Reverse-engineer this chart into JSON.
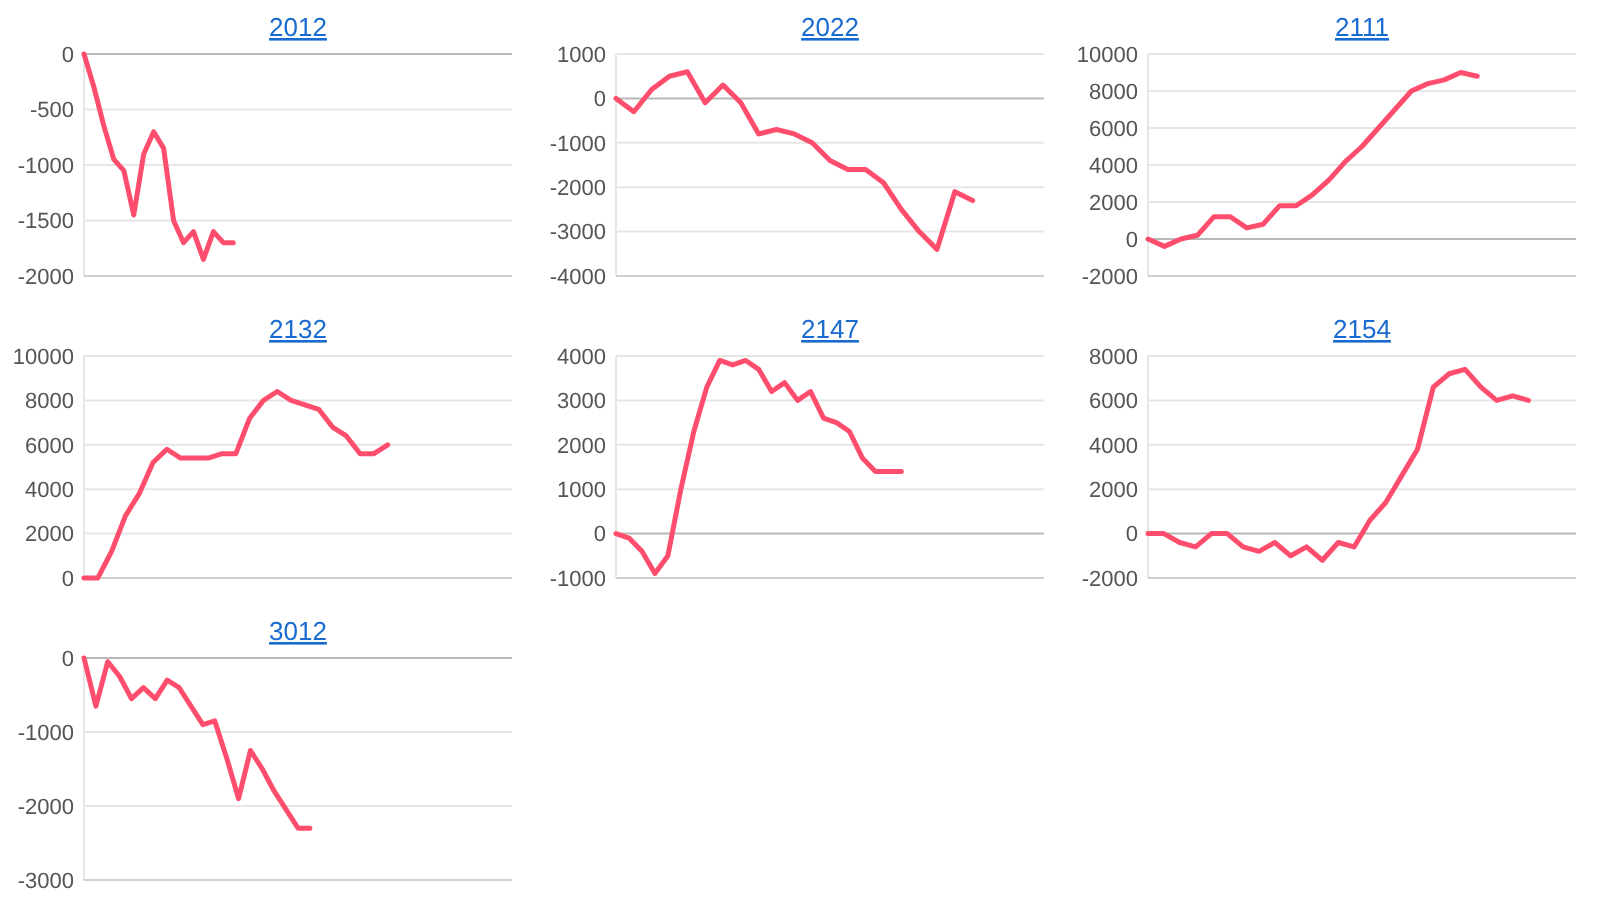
{
  "chart_data": [
    {
      "type": "line",
      "title": "2012",
      "categories": [
        null,
        null,
        null,
        null,
        null,
        null,
        null,
        null,
        null,
        null,
        null,
        null,
        null,
        null,
        null,
        null,
        null,
        null,
        null,
        null,
        null,
        null,
        null,
        null,
        null,
        null,
        null,
        null,
        null,
        null,
        null,
        null,
        null,
        null,
        null,
        null,
        null,
        null,
        null,
        null,
        null,
        null,
        null,
        null
      ],
      "series": [
        {
          "color": "#ff4d6d",
          "values": [
            0,
            -300,
            -650,
            -950,
            -1050,
            -1450,
            -900,
            -700,
            -850,
            -1500,
            -1700,
            -1600,
            -1850,
            -1600,
            -1700,
            -1700,
            null,
            null,
            null,
            null,
            null,
            null,
            null,
            null,
            null,
            null,
            null,
            null,
            null,
            null,
            null,
            null,
            null,
            null,
            null,
            null,
            null,
            null,
            null,
            null,
            null,
            null,
            null,
            null
          ]
        }
      ],
      "ylim": [
        -2000,
        0
      ],
      "yticks": [
        -2000,
        -1500,
        -1000,
        -500,
        0
      ],
      "grid": "y",
      "tick_labels": "y"
    },
    {
      "type": "line",
      "title": "2022",
      "categories": [
        null,
        null,
        null,
        null,
        null,
        null,
        null,
        null,
        null,
        null,
        null,
        null,
        null,
        null,
        null,
        null,
        null,
        null,
        null,
        null,
        null,
        null,
        null,
        null,
        null
      ],
      "series": [
        {
          "color": "#ff4d6d",
          "values": [
            0,
            -300,
            200,
            500,
            600,
            -100,
            300,
            -100,
            -800,
            -700,
            -800,
            -1000,
            -1400,
            -1600,
            -1600,
            -1900,
            -2500,
            -3000,
            -3400,
            -2100,
            -2300,
            null,
            null,
            null,
            null
          ]
        }
      ],
      "ylim": [
        -4000,
        1000
      ],
      "yticks": [
        -4000,
        -3000,
        -2000,
        -1000,
        0,
        1000
      ],
      "grid": "y",
      "tick_labels": "y"
    },
    {
      "type": "line",
      "title": "2111",
      "categories": [
        null,
        null,
        null,
        null,
        null,
        null,
        null,
        null,
        null,
        null,
        null,
        null,
        null,
        null,
        null,
        null,
        null,
        null,
        null,
        null,
        null,
        null,
        null,
        null,
        null,
        null,
        null
      ],
      "series": [
        {
          "color": "#ff4d6d",
          "values": [
            0,
            -400,
            0,
            200,
            1200,
            1200,
            600,
            800,
            1800,
            1800,
            2400,
            3200,
            4200,
            5000,
            6000,
            7000,
            8000,
            8400,
            8600,
            9000,
            8800,
            null,
            null,
            null,
            null,
            null,
            null
          ]
        }
      ],
      "ylim": [
        -2000,
        10000
      ],
      "yticks": [
        -2000,
        0,
        2000,
        4000,
        6000,
        8000,
        10000
      ],
      "grid": "y",
      "tick_labels": "y"
    },
    {
      "type": "line",
      "title": "2132",
      "categories": [
        null,
        null,
        null,
        null,
        null,
        null,
        null,
        null,
        null,
        null,
        null,
        null,
        null,
        null,
        null,
        null,
        null,
        null,
        null,
        null,
        null,
        null,
        null,
        null,
        null,
        null,
        null,
        null,
        null,
        null,
        null,
        null
      ],
      "series": [
        {
          "color": "#ff4d6d",
          "values": [
            0,
            0,
            1200,
            2800,
            3800,
            5200,
            5800,
            5400,
            5400,
            5400,
            5600,
            5600,
            7200,
            8000,
            8400,
            8000,
            7800,
            7600,
            6800,
            6400,
            5600,
            5600,
            6000,
            null,
            null,
            null,
            null,
            null,
            null,
            null,
            null,
            null
          ]
        }
      ],
      "ylim": [
        0,
        10000
      ],
      "yticks": [
        0,
        2000,
        4000,
        6000,
        8000,
        10000
      ],
      "grid": "y",
      "tick_labels": "y"
    },
    {
      "type": "line",
      "title": "2147",
      "categories": [
        null,
        null,
        null,
        null,
        null,
        null,
        null,
        null,
        null,
        null,
        null,
        null,
        null,
        null,
        null,
        null,
        null,
        null,
        null,
        null,
        null,
        null,
        null,
        null,
        null,
        null,
        null,
        null,
        null,
        null,
        null,
        null,
        null,
        null
      ],
      "series": [
        {
          "color": "#ff4d6d",
          "values": [
            0,
            -100,
            -400,
            -900,
            -500,
            1000,
            2300,
            3300,
            3900,
            3800,
            3900,
            3700,
            3200,
            3400,
            3000,
            3200,
            2600,
            2500,
            2300,
            1700,
            1400,
            1400,
            1400,
            null,
            null,
            null,
            null,
            null,
            null,
            null,
            null,
            null,
            null,
            null
          ]
        }
      ],
      "ylim": [
        -1000,
        4000
      ],
      "yticks": [
        -1000,
        0,
        1000,
        2000,
        3000,
        4000
      ],
      "grid": "y",
      "tick_labels": "y"
    },
    {
      "type": "line",
      "title": "2154",
      "categories": [
        null,
        null,
        null,
        null,
        null,
        null,
        null,
        null,
        null,
        null,
        null,
        null,
        null,
        null,
        null,
        null,
        null,
        null,
        null,
        null,
        null,
        null,
        null,
        null,
        null,
        null,
        null,
        null
      ],
      "series": [
        {
          "color": "#ff4d6d",
          "values": [
            0,
            0,
            -400,
            -600,
            0,
            0,
            -600,
            -800,
            -400,
            -1000,
            -600,
            -1200,
            -400,
            -600,
            600,
            1400,
            2600,
            3800,
            6600,
            7200,
            7400,
            6600,
            6000,
            6200,
            6000,
            null,
            null,
            null
          ]
        }
      ],
      "ylim": [
        -2000,
        8000
      ],
      "yticks": [
        -2000,
        0,
        2000,
        4000,
        6000,
        8000
      ],
      "grid": "y",
      "tick_labels": "y"
    },
    {
      "type": "line",
      "title": "3012",
      "categories": [
        null,
        null,
        null,
        null,
        null,
        null,
        null,
        null,
        null,
        null,
        null,
        null,
        null,
        null,
        null,
        null,
        null,
        null,
        null,
        null,
        null,
        null,
        null,
        null,
        null,
        null,
        null,
        null,
        null,
        null,
        null,
        null,
        null,
        null,
        null,
        null,
        null
      ],
      "series": [
        {
          "color": "#ff4d6d",
          "values": [
            0,
            -650,
            -50,
            -250,
            -550,
            -400,
            -550,
            -300,
            -400,
            -650,
            -900,
            -850,
            -1350,
            -1900,
            -1250,
            -1500,
            -1800,
            -2050,
            -2300,
            -2300,
            null,
            null,
            null,
            null,
            null,
            null,
            null,
            null,
            null,
            null,
            null,
            null,
            null,
            null,
            null,
            null,
            null
          ]
        }
      ],
      "ylim": [
        -3000,
        0
      ],
      "yticks": [
        -3000,
        -2000,
        -1000,
        0
      ],
      "grid": "y",
      "tick_labels": "y"
    }
  ]
}
